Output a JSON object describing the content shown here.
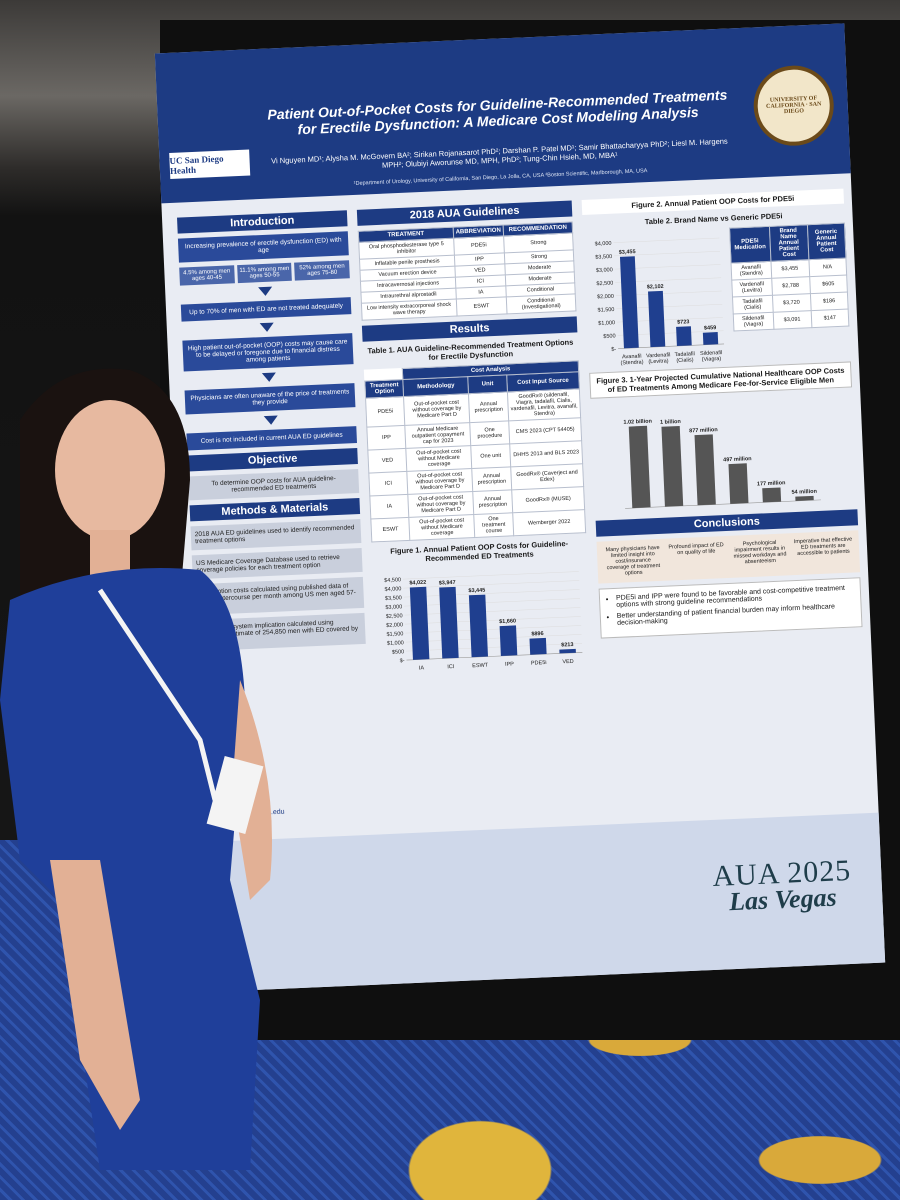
{
  "poster": {
    "logo": "UC San Diego Health",
    "seal": "UNIVERSITY OF CALIFORNIA · SAN DIEGO",
    "title": "Patient Out-of-Pocket Costs for Guideline-Recommended Treatments for Erectile Dysfunction: A Medicare Cost Modeling Analysis",
    "authors": "Vi Nguyen MD¹; Alysha M. McGovern BA²; Sirikan Rojanasarot PhD²; Darshan P. Patel MD¹; Samir Bhattacharyya PhD²; Liesl M. Hargens MPH²; Olubiyi Aworunse MD, MPH, PhD²; Tung-Chin Hsieh, MD, MBA¹",
    "affiliations": "¹Department of Urology, University of California, San Diego, La Jolla, CA, USA  ²Boston Scientific, Marlborough, MA, USA",
    "introduction": {
      "heading": "Introduction",
      "items": [
        "Increasing prevalence of erectile dysfunction (ED) with age",
        "Up to 70% of men with ED are not treated adequately",
        "High patient out-of-pocket (OOP) costs may cause care to be delayed or foregone due to financial distress among patients",
        "Physicians are often unaware of the price of treatments they provide",
        "Cost is not included in current AUA ED guidelines"
      ],
      "stats": [
        "4.5% among men ages 40-45",
        "11.1% among men ages 50-55",
        "52% among men ages 75-80"
      ]
    },
    "objective": {
      "heading": "Objective",
      "text": "To determine OOP costs for AUA guideline-recommended ED treatments"
    },
    "methods": {
      "heading": "Methods & Materials",
      "items": [
        "2018 AUA ED guidelines used to identify recommended treatment options",
        "US Medicare Coverage Database used to retrieve coverage policies for each treatment option",
        "Prescription costs calculated using published data of sexual intercourse per month among US men aged 57-72 years",
        "Healthcare system implication calculated using published estimate of 254,850 men with ED covered by Medicare"
      ]
    },
    "guidelines": {
      "heading": "2018 AUA Guidelines",
      "columns": [
        "TREATMENT",
        "ABBREVIATION",
        "RECOMMENDATION"
      ],
      "rows": [
        [
          "Oral phosphodiesterase type 5 inhibitor",
          "PDE5i",
          "Strong"
        ],
        [
          "Inflatable penile prosthesis",
          "IPP",
          "Strong"
        ],
        [
          "Vacuum erection device",
          "VED",
          "Moderate"
        ],
        [
          "Intracavernosal injections",
          "ICI",
          "Moderate"
        ],
        [
          "Intraurethral alprostadil",
          "IA",
          "Conditional"
        ],
        [
          "Low intensity extracorporeal shock wave therapy",
          "ESWT",
          "Conditional (Investigational)"
        ]
      ]
    },
    "results": {
      "heading": "Results",
      "table_caption": "Table 1. AUA Guideline-Recommended Treatment Options for Erectile Dysfunction",
      "group_header": "Cost Analysis",
      "columns": [
        "Treatment Option",
        "Methodology",
        "Unit",
        "Cost Input Source"
      ],
      "rows": [
        [
          "PDE5i",
          "Out-of-pocket cost without coverage by Medicare Part D",
          "Annual prescription",
          "GoodRx® (sildenafil, Viagra, tadalafil, Cialis, vardenafil, Levitra, avanafil, Stendra)"
        ],
        [
          "IPP",
          "Annual Medicare outpatient copayment cap for 2023",
          "One procedure",
          "CMS 2023 (CPT 54405)"
        ],
        [
          "VED",
          "Out-of-pocket cost without Medicare coverage",
          "One unit",
          "DHHS 2013 and BLS 2023"
        ],
        [
          "ICI",
          "Out-of-pocket cost without coverage by Medicare Part D",
          "Annual prescription",
          "GoodRx® (Caverject and Edex)"
        ],
        [
          "IA",
          "Out-of-pocket cost without coverage by Medicare Part D",
          "Annual prescription",
          "GoodRx® (MUSE)"
        ],
        [
          "ESWT",
          "Out-of-pocket cost without Medicare coverage",
          "One treatment course",
          "Wemberger 2022"
        ]
      ]
    },
    "figure1": {
      "type": "bar",
      "title": "Figure 1. Annual Patient OOP Costs for Guideline-Recommended ED Treatments",
      "categories": [
        "IA",
        "ICI",
        "ESWT",
        "IPP",
        "PDE5i",
        "VED"
      ],
      "values": [
        4022,
        3947,
        3445,
        1660,
        896,
        213
      ],
      "value_labels": [
        "$4,022",
        "$3,947",
        "$3,445",
        "$1,660",
        "$896",
        "$213"
      ],
      "color": "#1f3f8f",
      "ylim": [
        0,
        4500
      ],
      "yticks": [
        {
          "value": 0,
          "label": "$-"
        },
        {
          "value": 500,
          "label": "$500"
        },
        {
          "value": 1000,
          "label": "$1,000"
        },
        {
          "value": 1500,
          "label": "$1,500"
        },
        {
          "value": 2000,
          "label": "$2,000"
        },
        {
          "value": 2500,
          "label": "$2,500"
        },
        {
          "value": 3000,
          "label": "$3,000"
        },
        {
          "value": 3500,
          "label": "$3,500"
        },
        {
          "value": 4000,
          "label": "$4,000"
        },
        {
          "value": 4500,
          "label": "$4,500"
        }
      ]
    },
    "figure2": {
      "type": "bar",
      "title": "Figure 2. Annual Patient OOP Costs for PDE5i",
      "categories": [
        "Avanafil (Stendra)",
        "Vardenafil (Levitra)",
        "Tadalafil (Cialis)",
        "Sildenafil (Viagra)"
      ],
      "values": [
        3455,
        2102,
        723,
        459
      ],
      "value_labels": [
        "$3,455",
        "$2,102",
        "$723",
        "$459"
      ],
      "color": "#1f3f8f",
      "ylim": [
        0,
        4000
      ],
      "yticks": [
        {
          "value": 0,
          "label": "$-"
        },
        {
          "value": 500,
          "label": "$500"
        },
        {
          "value": 1000,
          "label": "$1,000"
        },
        {
          "value": 1500,
          "label": "$1,500"
        },
        {
          "value": 2000,
          "label": "$2,000"
        },
        {
          "value": 2500,
          "label": "$2,500"
        },
        {
          "value": 3000,
          "label": "$3,000"
        },
        {
          "value": 3500,
          "label": "$3,500"
        },
        {
          "value": 4000,
          "label": "$4,000"
        }
      ]
    },
    "table2": {
      "title": "Table 2. Brand Name vs Generic PDE5i",
      "columns": [
        "PDE5i Medication",
        "Brand Name Annual Patient Cost",
        "Generic Annual Patient Cost"
      ],
      "rows": [
        [
          "Avanafil (Stendra)",
          "$3,455",
          "N/A"
        ],
        [
          "Vardenafil (Levitra)",
          "$2,788",
          "$605"
        ],
        [
          "Tadalafil (Cialis)",
          "$3,720",
          "$186"
        ],
        [
          "Sildenafil (Viagra)",
          "$3,091",
          "$147"
        ]
      ]
    },
    "figure3": {
      "type": "bar",
      "title": "Figure 3. 1-Year Projected Cumulative National Healthcare OOP Costs of ED Treatments Among Medicare Fee-for-Service Eligible Men",
      "categories": [
        null,
        null,
        null,
        null,
        null,
        null
      ],
      "values": [
        1020,
        1000,
        877,
        497,
        177,
        54
      ],
      "value_labels": [
        "1.02 billion",
        "1 billion",
        "877 million",
        "497 million",
        "177 million",
        "54 million"
      ],
      "color": "#555555",
      "ylim": [
        0,
        1200
      ]
    },
    "conclusions": {
      "heading": "Conclusions",
      "points": [
        "Many physicians have limited insight into cost/insurance coverage of treatment options",
        "Profound impact of ED on quality of life",
        "Psychological impairment results in missed workdays and absenteeism",
        "Imperative that effective ED treatments are accessible to patients"
      ],
      "bullets": [
        "PDE5i and IPP were found to be favorable and cost-competitive treatment options with strong guideline recommendations",
        "Better understanding of patient financial burden may inform healthcare decision-making"
      ]
    },
    "contact": "@health.ucsd.edu",
    "badge": "AUA 2025",
    "badge_city": "Las Vegas"
  }
}
